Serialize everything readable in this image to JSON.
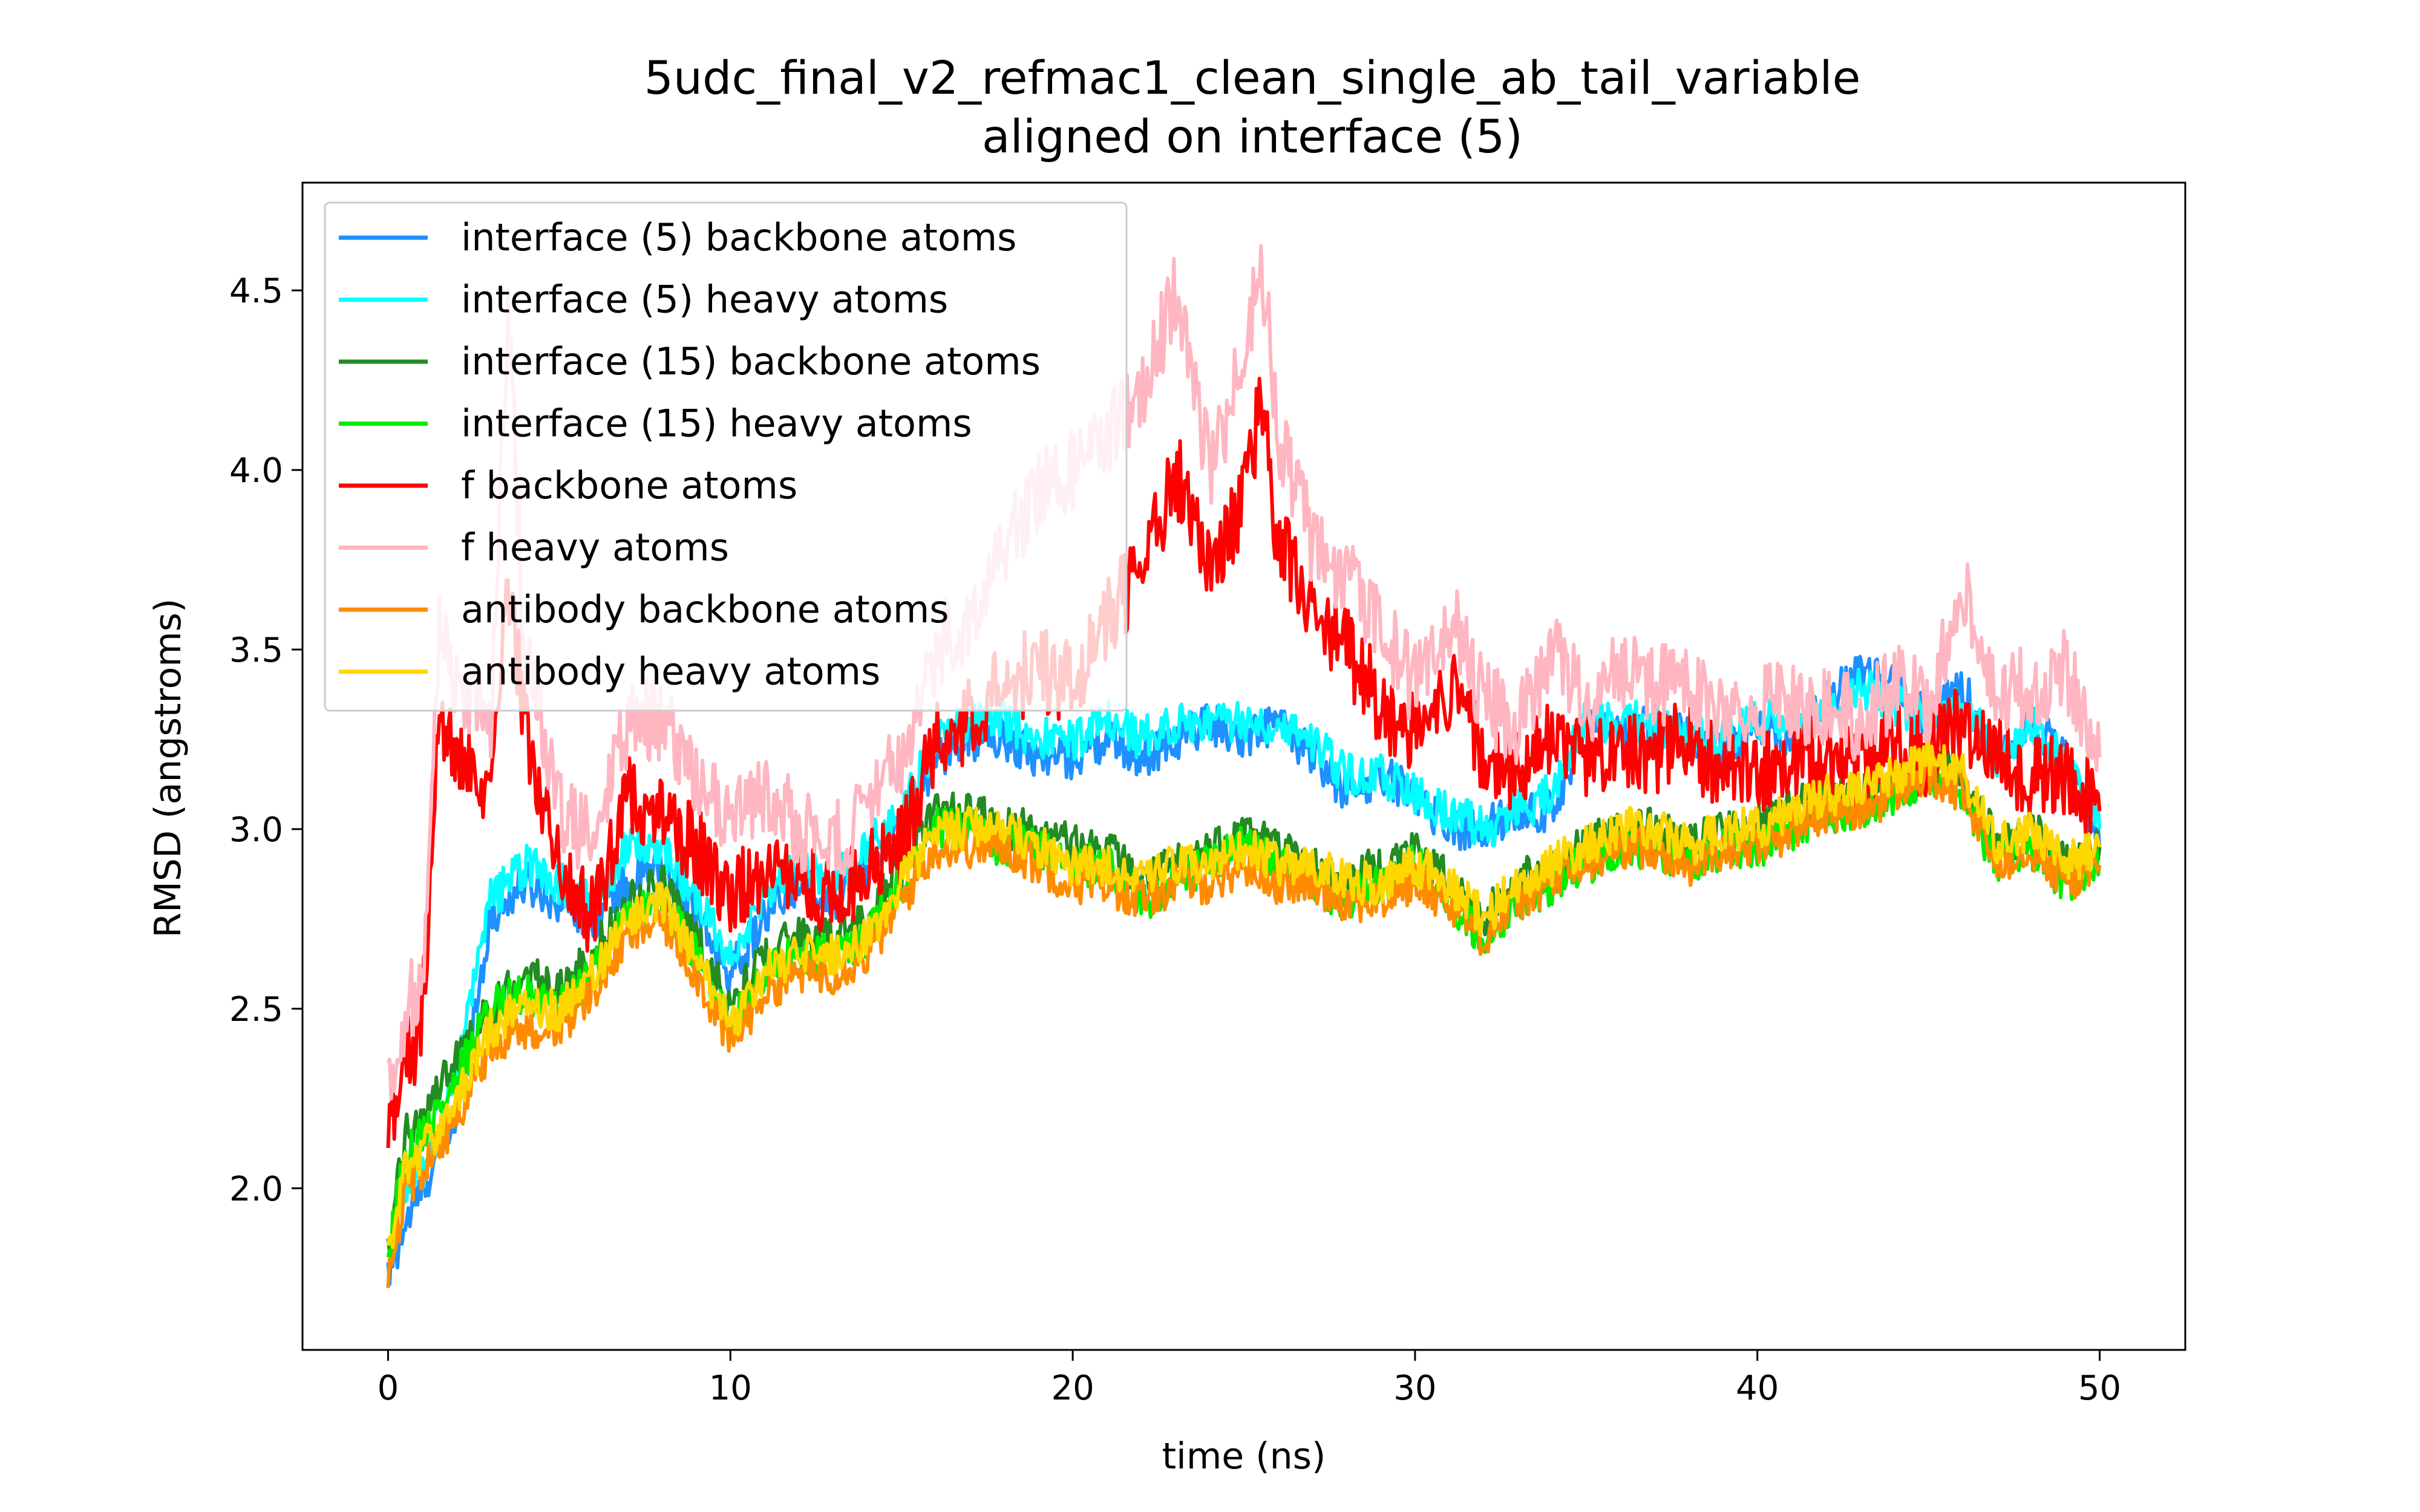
{
  "chart_data": {
    "type": "line",
    "title": "5udc_final_v2_refmac1_clean_single_ab_tail_variable",
    "subtitle": "aligned on interface (5)",
    "xlabel": "time (ns)",
    "ylabel": "RMSD (angstroms)",
    "xlim": [
      -2.5,
      52.5
    ],
    "ylim": [
      1.55,
      4.8
    ],
    "xticks": [
      0,
      10,
      20,
      30,
      40,
      50
    ],
    "xtick_labels": [
      "0",
      "10",
      "20",
      "30",
      "40",
      "50"
    ],
    "yticks": [
      2.0,
      2.5,
      3.0,
      3.5,
      4.0,
      4.5
    ],
    "ytick_labels": [
      "2.0",
      "2.5",
      "3.0",
      "3.5",
      "4.0",
      "4.5"
    ],
    "grid": false,
    "legend_position": "top-left",
    "series": [
      {
        "name": "interface (5) backbone atoms",
        "color": "#1e90ff",
        "x": [
          0,
          0.5,
          1,
          2,
          3,
          4,
          5,
          6,
          7,
          8,
          9,
          10,
          11,
          12,
          13,
          14,
          15,
          16,
          17,
          18,
          19,
          20,
          21,
          22,
          23,
          24,
          25,
          26,
          27,
          28,
          29,
          30,
          31,
          32,
          33,
          34,
          35,
          36,
          37,
          38,
          39,
          40,
          41,
          42,
          43,
          44,
          45,
          46,
          47,
          48,
          49,
          50
        ],
        "y": [
          1.75,
          1.9,
          2.0,
          2.2,
          2.75,
          2.85,
          2.8,
          2.75,
          2.85,
          2.9,
          2.75,
          2.6,
          2.75,
          2.85,
          2.8,
          2.9,
          3.0,
          3.2,
          3.25,
          3.25,
          3.2,
          3.2,
          3.25,
          3.2,
          3.25,
          3.3,
          3.25,
          3.3,
          3.2,
          3.1,
          3.15,
          3.1,
          3.0,
          3.0,
          3.05,
          3.05,
          3.3,
          3.25,
          3.3,
          3.25,
          3.2,
          3.3,
          3.25,
          3.35,
          3.45,
          3.4,
          3.3,
          3.4,
          3.2,
          3.3,
          3.2,
          2.95
        ]
      },
      {
        "name": "interface (5) heavy atoms",
        "color": "#00ffff",
        "x": [
          0,
          0.5,
          1,
          2,
          3,
          4,
          5,
          6,
          7,
          8,
          9,
          10,
          11,
          12,
          13,
          14,
          15,
          16,
          17,
          18,
          19,
          20,
          21,
          22,
          23,
          24,
          25,
          26,
          27,
          28,
          29,
          30,
          31,
          32,
          33,
          34,
          35,
          36,
          37,
          38,
          39,
          40,
          41,
          42,
          43,
          44,
          45,
          46,
          47,
          48,
          49,
          50
        ],
        "y": [
          1.85,
          2.0,
          2.05,
          2.3,
          2.8,
          2.9,
          2.85,
          2.8,
          2.95,
          2.95,
          2.8,
          2.65,
          2.8,
          2.9,
          2.85,
          2.95,
          3.05,
          3.25,
          3.3,
          3.3,
          3.25,
          3.25,
          3.3,
          3.25,
          3.3,
          3.3,
          3.3,
          3.3,
          3.25,
          3.15,
          3.15,
          3.1,
          3.05,
          3.0,
          3.05,
          3.1,
          3.3,
          3.3,
          3.3,
          3.25,
          3.25,
          3.3,
          3.3,
          3.35,
          3.4,
          3.35,
          3.3,
          3.35,
          3.2,
          3.3,
          3.2,
          3.0
        ]
      },
      {
        "name": "interface (15) backbone atoms",
        "color": "#228b22",
        "x": [
          0,
          0.5,
          1,
          2,
          3,
          4,
          5,
          6,
          7,
          8,
          9,
          10,
          11,
          12,
          13,
          14,
          15,
          16,
          17,
          18,
          19,
          20,
          21,
          22,
          23,
          24,
          25,
          26,
          27,
          28,
          29,
          30,
          31,
          32,
          33,
          34,
          35,
          36,
          37,
          38,
          39,
          40,
          41,
          42,
          43,
          44,
          45,
          46,
          47,
          48,
          49,
          50
        ],
        "y": [
          1.8,
          2.15,
          2.2,
          2.35,
          2.5,
          2.6,
          2.55,
          2.65,
          2.8,
          2.85,
          2.7,
          2.5,
          2.65,
          2.7,
          2.7,
          2.75,
          2.9,
          3.05,
          3.05,
          3.0,
          3.0,
          2.95,
          2.95,
          2.85,
          2.9,
          2.95,
          3.0,
          2.95,
          2.9,
          2.85,
          2.9,
          2.95,
          2.85,
          2.75,
          2.85,
          2.9,
          2.95,
          3.0,
          3.0,
          2.95,
          3.0,
          3.0,
          3.05,
          3.1,
          3.1,
          3.15,
          3.2,
          3.15,
          2.95,
          3.0,
          2.9,
          2.95
        ]
      },
      {
        "name": "interface (15) heavy atoms",
        "color": "#00ee00",
        "x": [
          0,
          0.5,
          1,
          2,
          3,
          4,
          5,
          6,
          7,
          8,
          9,
          10,
          11,
          12,
          13,
          14,
          15,
          16,
          17,
          18,
          19,
          20,
          21,
          22,
          23,
          24,
          25,
          26,
          27,
          28,
          29,
          30,
          31,
          32,
          33,
          34,
          35,
          36,
          37,
          38,
          39,
          40,
          41,
          42,
          43,
          44,
          45,
          46,
          47,
          48,
          49,
          50
        ],
        "y": [
          1.8,
          2.1,
          2.15,
          2.3,
          2.5,
          2.55,
          2.5,
          2.6,
          2.75,
          2.8,
          2.65,
          2.45,
          2.6,
          2.65,
          2.65,
          2.7,
          2.85,
          3.0,
          3.0,
          2.95,
          2.95,
          2.9,
          2.9,
          2.8,
          2.85,
          2.9,
          2.95,
          2.9,
          2.85,
          2.8,
          2.85,
          2.9,
          2.8,
          2.7,
          2.8,
          2.85,
          2.9,
          2.95,
          2.95,
          2.9,
          2.95,
          2.95,
          3.0,
          3.05,
          3.05,
          3.1,
          3.15,
          3.1,
          2.9,
          2.95,
          2.85,
          2.9
        ]
      },
      {
        "name": "f backbone atoms",
        "color": "#ff0000",
        "x": [
          0,
          0.5,
          1,
          1.5,
          2,
          3,
          3.5,
          4,
          5,
          6,
          7,
          8,
          9,
          10,
          11,
          12,
          13,
          14,
          15,
          16,
          17,
          18,
          19,
          20,
          21,
          22,
          23,
          24,
          25,
          25.5,
          26,
          27,
          28,
          29,
          30,
          31,
          32,
          33,
          34,
          35,
          36,
          37,
          38,
          39,
          40,
          41,
          42,
          43,
          44,
          45,
          46,
          47,
          48,
          49,
          50
        ],
        "y": [
          2.2,
          2.35,
          2.45,
          3.3,
          3.2,
          3.05,
          3.7,
          3.3,
          2.9,
          2.75,
          3.1,
          3.05,
          2.95,
          2.8,
          2.9,
          2.85,
          2.8,
          2.9,
          2.95,
          3.25,
          3.3,
          3.4,
          3.45,
          3.4,
          3.6,
          3.7,
          4.0,
          3.75,
          3.9,
          4.2,
          3.8,
          3.6,
          3.5,
          3.35,
          3.25,
          3.4,
          3.2,
          3.15,
          3.25,
          3.2,
          3.25,
          3.2,
          3.25,
          3.15,
          3.15,
          3.2,
          3.2,
          3.15,
          3.25,
          3.2,
          3.3,
          3.2,
          3.15,
          3.15,
          3.05
        ]
      },
      {
        "name": "f heavy atoms",
        "color": "#ffb6c1",
        "x": [
          0,
          0.5,
          1,
          1.5,
          2,
          3,
          3.5,
          4,
          5,
          6,
          7,
          8,
          9,
          10,
          11,
          12,
          13,
          14,
          15,
          16,
          17,
          18,
          19,
          20,
          21,
          22,
          23,
          24,
          25,
          25.5,
          26,
          27,
          28,
          29,
          30,
          31,
          32,
          33,
          34,
          35,
          36,
          37,
          38,
          39,
          40,
          41,
          42,
          43,
          44,
          45,
          46,
          47,
          48,
          49,
          50
        ],
        "y": [
          2.3,
          2.5,
          2.6,
          3.6,
          3.4,
          3.3,
          4.45,
          3.5,
          3.05,
          2.95,
          3.3,
          3.3,
          3.15,
          3.0,
          3.1,
          3.0,
          2.95,
          3.05,
          3.2,
          3.5,
          3.6,
          3.8,
          3.95,
          4.0,
          4.1,
          4.2,
          4.5,
          4.0,
          4.3,
          4.6,
          4.1,
          3.8,
          3.7,
          3.55,
          3.4,
          3.6,
          3.35,
          3.3,
          3.5,
          3.35,
          3.45,
          3.4,
          3.4,
          3.3,
          3.35,
          3.35,
          3.35,
          3.3,
          3.4,
          3.35,
          3.7,
          3.35,
          3.4,
          3.45,
          3.2
        ]
      },
      {
        "name": "antibody backbone atoms",
        "color": "#ff8c00",
        "x": [
          0,
          0.5,
          1,
          2,
          3,
          4,
          5,
          6,
          7,
          8,
          9,
          10,
          11,
          12,
          13,
          14,
          15,
          16,
          17,
          18,
          19,
          20,
          21,
          22,
          23,
          24,
          25,
          26,
          27,
          28,
          29,
          30,
          31,
          32,
          33,
          34,
          35,
          36,
          37,
          38,
          39,
          40,
          41,
          42,
          43,
          44,
          45,
          46,
          47,
          48,
          49,
          50
        ],
        "y": [
          1.75,
          2.0,
          2.05,
          2.2,
          2.4,
          2.45,
          2.45,
          2.55,
          2.7,
          2.75,
          2.6,
          2.4,
          2.55,
          2.6,
          2.6,
          2.65,
          2.8,
          2.95,
          2.95,
          2.95,
          2.9,
          2.85,
          2.85,
          2.8,
          2.85,
          2.85,
          2.9,
          2.85,
          2.85,
          2.8,
          2.8,
          2.85,
          2.8,
          2.7,
          2.8,
          2.85,
          2.9,
          2.95,
          2.95,
          2.9,
          2.95,
          2.95,
          3.0,
          3.05,
          3.05,
          3.1,
          3.15,
          3.1,
          2.9,
          2.95,
          2.85,
          2.9
        ]
      },
      {
        "name": "antibody heavy atoms",
        "color": "#ffd700",
        "x": [
          0,
          0.5,
          1,
          2,
          3,
          4,
          5,
          6,
          7,
          8,
          9,
          10,
          11,
          12,
          13,
          14,
          15,
          16,
          17,
          18,
          19,
          20,
          21,
          22,
          23,
          24,
          25,
          26,
          27,
          28,
          29,
          30,
          31,
          32,
          33,
          34,
          35,
          36,
          37,
          38,
          39,
          40,
          41,
          42,
          43,
          44,
          45,
          46,
          47,
          48,
          49,
          50
        ],
        "y": [
          1.8,
          2.05,
          2.1,
          2.25,
          2.45,
          2.5,
          2.5,
          2.6,
          2.75,
          2.8,
          2.65,
          2.45,
          2.6,
          2.65,
          2.65,
          2.7,
          2.85,
          3.0,
          3.0,
          3.0,
          2.95,
          2.9,
          2.9,
          2.85,
          2.9,
          2.9,
          2.95,
          2.9,
          2.9,
          2.85,
          2.85,
          2.9,
          2.85,
          2.75,
          2.85,
          2.9,
          2.95,
          3.0,
          3.0,
          2.95,
          3.0,
          3.0,
          3.05,
          3.1,
          3.1,
          3.15,
          3.2,
          3.15,
          2.95,
          3.0,
          2.9,
          2.95
        ]
      }
    ]
  }
}
